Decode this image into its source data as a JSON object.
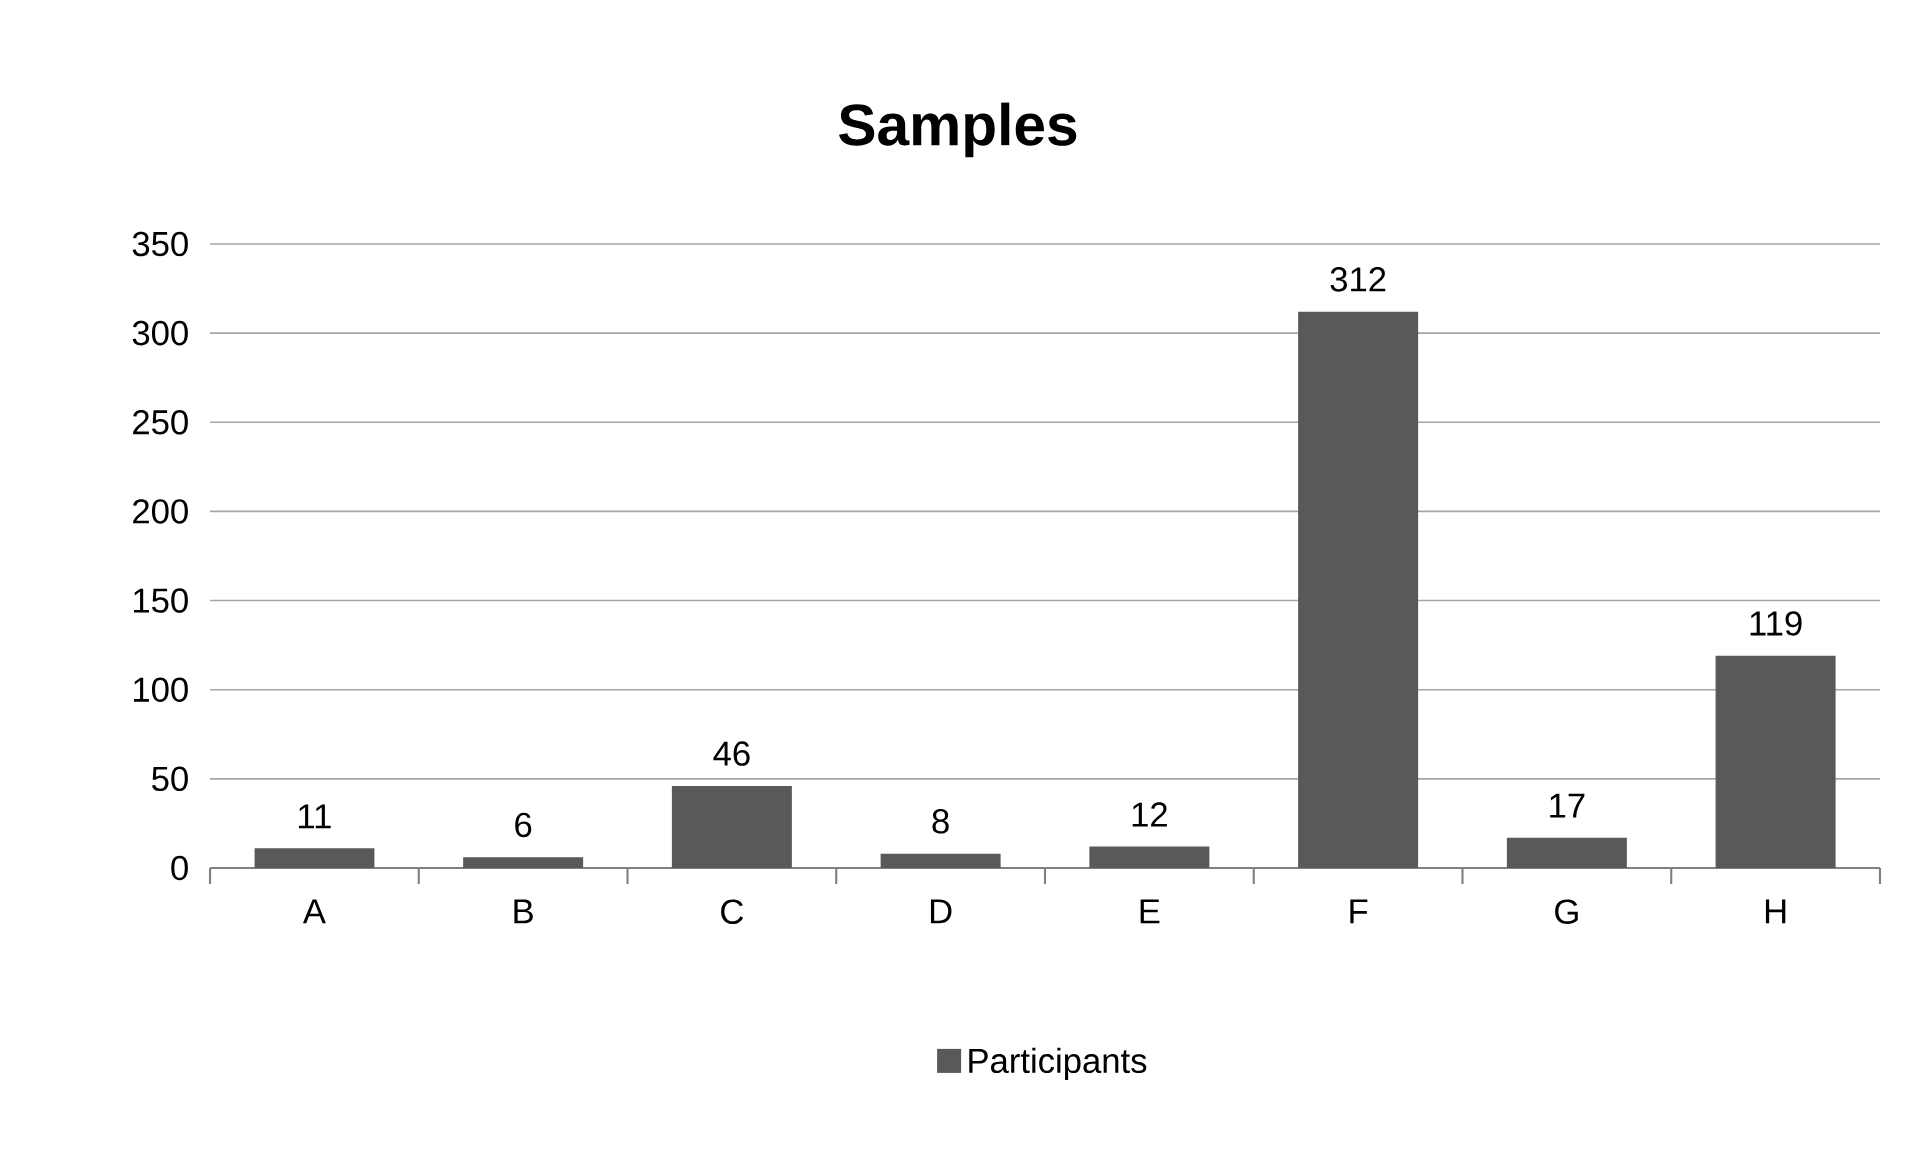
{
  "chart_data": {
    "type": "bar",
    "title": "Samples",
    "categories": [
      "A",
      "B",
      "C",
      "D",
      "E",
      "F",
      "G",
      "H"
    ],
    "series": [
      {
        "name": "Participants",
        "color": "#595959",
        "values": [
          11,
          6,
          46,
          8,
          12,
          312,
          17,
          119
        ]
      }
    ],
    "ylim": [
      0,
      350
    ],
    "yticks": [
      0,
      50,
      100,
      150,
      200,
      250,
      300,
      350
    ],
    "grid": "y",
    "legend": "bottom",
    "data_labels": true
  }
}
